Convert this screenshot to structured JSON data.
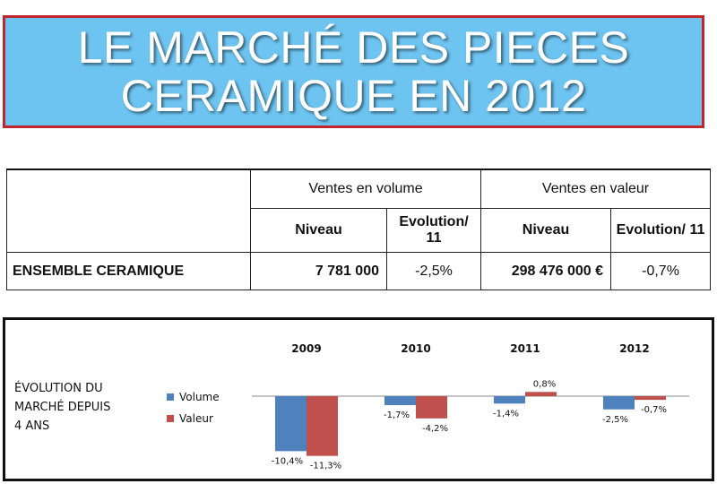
{
  "title": {
    "line1": "LE MARCHÉ DES PIECES",
    "line2": "CERAMIQUE EN 2012"
  },
  "table": {
    "header_volume": "Ventes en volume",
    "header_value": "Ventes en valeur",
    "sub_niveau": "Niveau",
    "sub_evolution": "Evolution/ 11",
    "row_label": "ENSEMBLE CERAMIQUE",
    "volume_niveau": "7 781 000",
    "volume_evolution": "-2,5%",
    "value_niveau": "298 476 000 €",
    "value_evolution": "-0,7%"
  },
  "chart_title": "ÉVOLUTION DU\nMARCHÉ DEPUIS\n4 ANS",
  "colors": {
    "volume": "#4f81bd",
    "valeur": "#c0504d",
    "banner": "#6ec4f1",
    "banner_border": "#c0262b"
  },
  "chart_data": {
    "type": "bar",
    "categories": [
      "2009",
      "2010",
      "2011",
      "2012"
    ],
    "series": [
      {
        "name": "Volume",
        "values": [
          -10.4,
          -1.7,
          -1.4,
          -2.5
        ],
        "labels": [
          "-10,4%",
          "-1,7%",
          "-1,4%",
          "-2,5%"
        ]
      },
      {
        "name": "Valeur",
        "values": [
          -11.3,
          -4.2,
          0.8,
          -0.7
        ],
        "labels": [
          "-11,3%",
          "-4,2%",
          "0,8%",
          "-0,7%"
        ]
      }
    ],
    "title": "ÉVOLUTION DU MARCHÉ DEPUIS 4 ANS",
    "xlabel": "",
    "ylabel": "",
    "ylim": [
      -12,
      1
    ],
    "grid": false,
    "legend": "left"
  }
}
